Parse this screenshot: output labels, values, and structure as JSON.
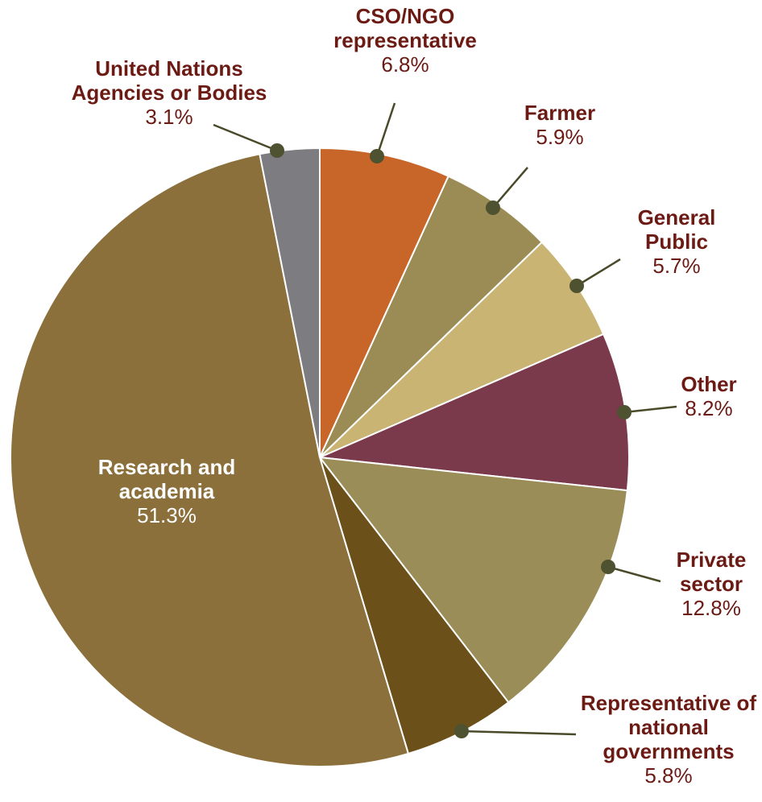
{
  "chart_data": {
    "type": "pie",
    "categories": [
      "CSO/NGO representative",
      "Farmer",
      "General Public",
      "Other",
      "Private sector",
      "Representative of national governments",
      "Research and academia",
      "United Nations Agencies or Bodies"
    ],
    "values": [
      6.8,
      5.9,
      5.7,
      8.2,
      12.8,
      5.8,
      51.3,
      3.1
    ],
    "value_labels": [
      "6.8%",
      "5.9%",
      "5.7%",
      "8.2%",
      "12.8%",
      "5.8%",
      "51.3%",
      "3.1%"
    ],
    "colors": [
      "#c8662a",
      "#9b8c55",
      "#c9b474",
      "#7b3a4c",
      "#9a8d57",
      "#6b5019",
      "#8b703c",
      "#7d7c80"
    ]
  }
}
